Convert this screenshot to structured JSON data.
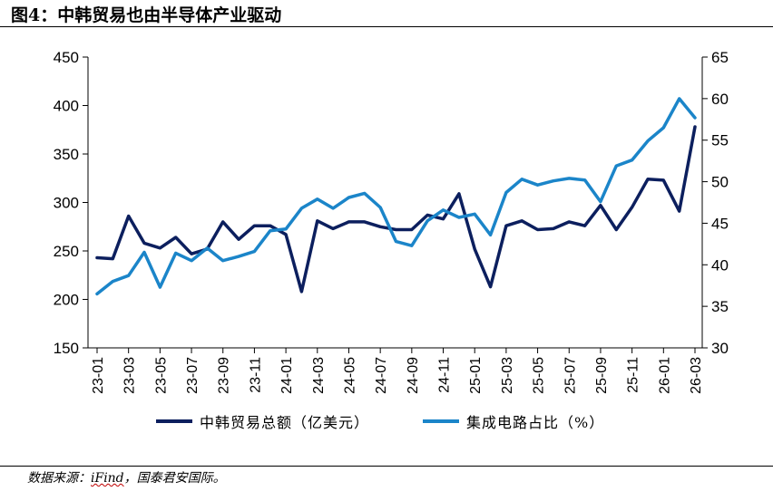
{
  "figure_title": "图4：中韩贸易也由半导体产业驱动",
  "source": {
    "prefix": "数据来源：",
    "ifind": "iFind",
    "suffix": "，国泰君安国际。"
  },
  "colors": {
    "series_trade": "#0c1f5e",
    "series_ic_share": "#1b85c9"
  },
  "chart_data": {
    "type": "line",
    "title": "",
    "xlabel": "",
    "ylabel": "",
    "y2label": "",
    "x": [
      "23-01",
      "23-02",
      "23-03",
      "23-04",
      "23-05",
      "23-06",
      "23-07",
      "23-08",
      "23-09",
      "23-10",
      "23-11",
      "23-12",
      "24-01",
      "24-02",
      "24-03",
      "24-04",
      "24-05",
      "24-06",
      "24-07",
      "24-08",
      "24-09",
      "24-10",
      "24-11",
      "24-12",
      "25-01",
      "25-02",
      "25-03",
      "25-04",
      "25-05",
      "25-06",
      "25-07",
      "25-08",
      "25-09",
      "25-10",
      "25-11",
      "25-12",
      "26-01",
      "26-02",
      "26-03"
    ],
    "x_tick_labels": [
      "23-01",
      "23-03",
      "23-05",
      "23-07",
      "23-09",
      "23-11",
      "24-01",
      "24-03",
      "24-05",
      "24-07",
      "24-09",
      "24-11",
      "25-01",
      "25-03",
      "25-05",
      "25-07",
      "25-09",
      "25-11",
      "26-01",
      "26-03"
    ],
    "ylim": [
      150,
      450
    ],
    "y_ticks": [
      150,
      200,
      250,
      300,
      350,
      400,
      450
    ],
    "y2lim": [
      30,
      65
    ],
    "y2_ticks": [
      30,
      35,
      40,
      45,
      50,
      55,
      60,
      65
    ],
    "grid": false,
    "legend_position": "bottom",
    "series": [
      {
        "name": "中韩贸易总额（亿美元）",
        "axis": "left",
        "color": "#0c1f5e",
        "values": [
          243,
          242,
          286,
          258,
          253,
          264,
          247,
          252,
          280,
          262,
          276,
          276,
          267,
          208,
          281,
          273,
          280,
          280,
          275,
          272,
          272,
          287,
          283,
          309,
          252,
          213,
          276,
          281,
          272,
          273,
          280,
          276,
          297,
          272,
          295,
          324,
          323,
          291,
          378
        ]
      },
      {
        "name": "集成电路占比（%）",
        "axis": "right",
        "color": "#1b85c9",
        "values": [
          36.5,
          38.0,
          38.7,
          41.5,
          37.3,
          41.4,
          40.5,
          42.0,
          40.5,
          41.0,
          41.6,
          44.1,
          44.3,
          46.8,
          47.9,
          46.8,
          48.1,
          48.6,
          46.9,
          42.8,
          42.3,
          45.3,
          46.6,
          45.7,
          46.1,
          43.6,
          48.7,
          50.3,
          49.6,
          50.1,
          50.4,
          50.2,
          47.6,
          51.9,
          52.6,
          54.9,
          56.5,
          60.0,
          57.7
        ]
      }
    ]
  }
}
